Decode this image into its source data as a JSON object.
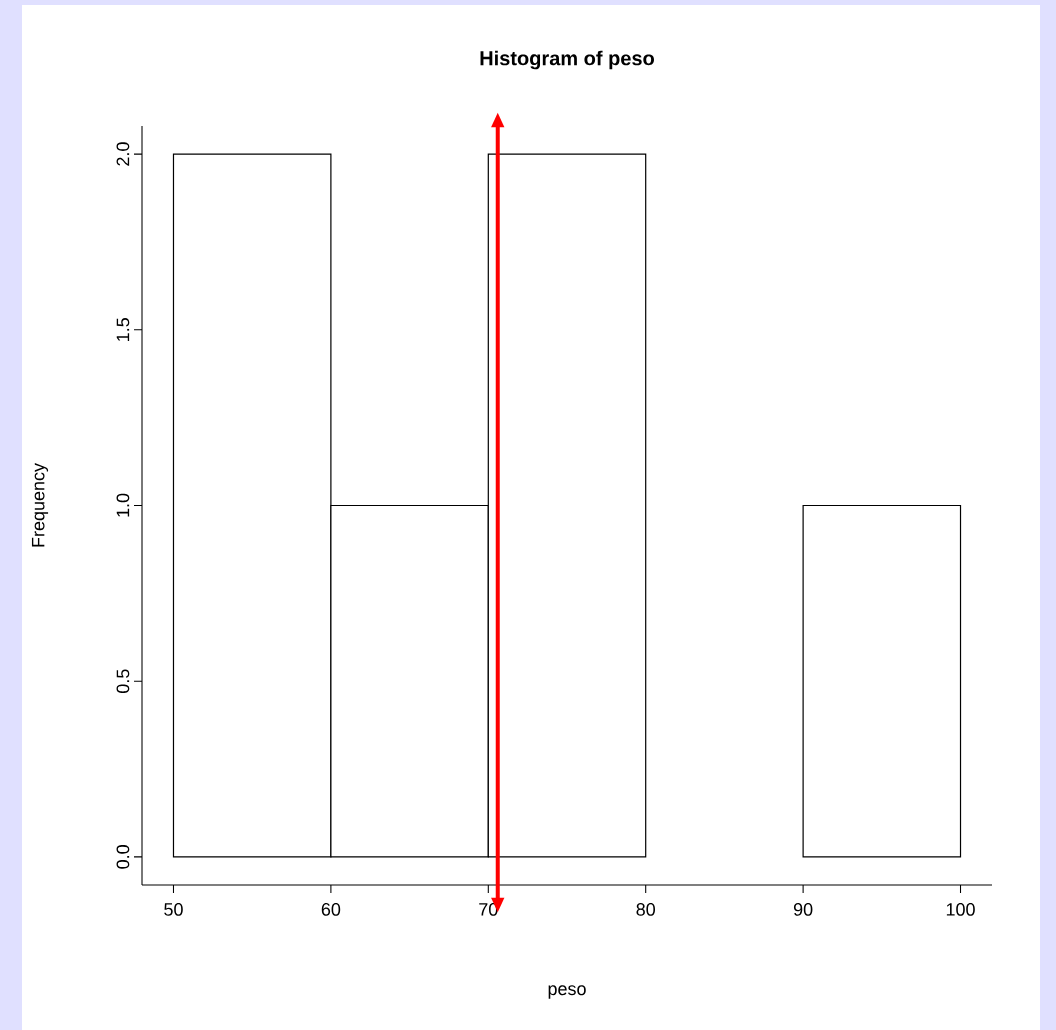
{
  "chart_data": {
    "type": "histogram",
    "title": "Histogram of peso",
    "xlabel": "peso",
    "ylabel": "Frequency",
    "bins": [
      50,
      60,
      70,
      80,
      90,
      100
    ],
    "values": [
      2,
      1,
      2,
      0,
      1
    ],
    "color": "#ffffff",
    "xlim": [
      48,
      102
    ],
    "ylim": [
      -0.08,
      2.08
    ],
    "xticks": [
      50,
      60,
      70,
      80,
      90,
      100
    ],
    "yticks": [
      {
        "value": 0,
        "label": "0.0"
      },
      {
        "value": 0.5,
        "label": "0.5"
      },
      {
        "value": 1,
        "label": "1.0"
      },
      {
        "value": 1.5,
        "label": "1.5"
      },
      {
        "value": 2,
        "label": "2.0"
      }
    ],
    "ref_lines": [
      {
        "axis": "x",
        "value": 70.6,
        "color": "#ff0000"
      }
    ]
  }
}
